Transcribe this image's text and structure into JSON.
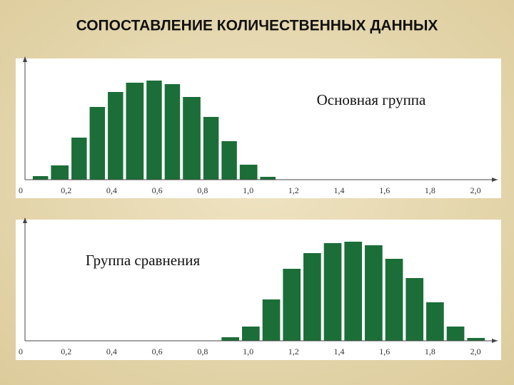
{
  "title": "СОПОСТАВЛЕНИЕ КОЛИЧЕСТВЕННЫХ ДАННЫХ",
  "chart_data": [
    {
      "type": "histogram",
      "annotation": "Основная группа",
      "color": "#1b6e38",
      "bins": [
        0.05,
        0.13,
        0.22,
        0.3,
        0.38,
        0.46,
        0.55,
        0.63,
        0.71,
        0.8,
        0.88,
        0.96,
        1.05,
        1.13
      ],
      "values": [
        5,
        20,
        59,
        102,
        123,
        136,
        139,
        134,
        116,
        88,
        54,
        21,
        4
      ],
      "xlim": [
        0,
        2.1
      ],
      "ylim": [
        0,
        167
      ],
      "xticks": [
        0,
        {
          "value": 0.2,
          "label": "0,2"
        },
        {
          "value": 0.4,
          "label": "0,4"
        },
        {
          "value": 0.6,
          "label": "0,6"
        },
        {
          "value": 0.8,
          "label": "0,8"
        },
        {
          "value": 1.0,
          "label": "1,0"
        },
        {
          "value": 1.2,
          "label": "1,2"
        },
        {
          "value": 1.4,
          "label": "1,4"
        },
        {
          "value": 1.6,
          "label": "1,6"
        },
        {
          "value": 1.8,
          "label": "1,8"
        },
        {
          "value": 2.0,
          "label": "2,0"
        }
      ],
      "grid": false
    },
    {
      "type": "histogram",
      "annotation": "Группа сравнения",
      "color": "#1b6e38",
      "bins": [
        0.88,
        0.97,
        1.06,
        1.15,
        1.24,
        1.33,
        1.42,
        1.51,
        1.6,
        1.69,
        1.78,
        1.87,
        1.96,
        2.05
      ],
      "values": [
        5,
        20,
        58,
        101,
        123,
        137,
        139,
        134,
        115,
        88,
        54,
        20,
        4
      ],
      "xlim": [
        0,
        2.1
      ],
      "ylim": [
        0,
        167
      ],
      "xticks": [
        0,
        {
          "value": 0.2,
          "label": "0,2"
        },
        {
          "value": 0.4,
          "label": "0,4"
        },
        {
          "value": 0.6,
          "label": "0,6"
        },
        {
          "value": 0.8,
          "label": "0,8"
        },
        {
          "value": 1.0,
          "label": "1,0"
        },
        {
          "value": 1.2,
          "label": "1,2"
        },
        {
          "value": 1.4,
          "label": "1,4"
        },
        {
          "value": 1.6,
          "label": "1,6"
        },
        {
          "value": 1.8,
          "label": "1,8"
        },
        {
          "value": 2.0,
          "label": "2,0"
        }
      ],
      "grid": false
    }
  ]
}
